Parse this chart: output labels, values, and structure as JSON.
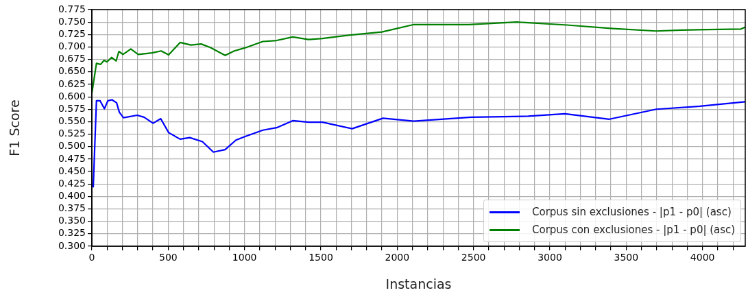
{
  "chart_data": {
    "type": "line",
    "xlabel": "Instancias",
    "ylabel": "F1 Score",
    "xlim": [
      0,
      4280
    ],
    "ylim": [
      0.3,
      0.775
    ],
    "xticks": [
      0,
      {
        "value": 100,
        "label": null
      },
      {
        "value": 200,
        "label": null
      },
      {
        "value": 300,
        "label": null
      },
      {
        "value": 400,
        "label": null
      },
      500,
      {
        "value": 600,
        "label": null
      },
      {
        "value": 700,
        "label": null
      },
      {
        "value": 800,
        "label": null
      },
      {
        "value": 900,
        "label": null
      },
      1000,
      {
        "value": 1100,
        "label": null
      },
      {
        "value": 1200,
        "label": null
      },
      {
        "value": 1300,
        "label": null
      },
      {
        "value": 1400,
        "label": null
      },
      1500,
      {
        "value": 1600,
        "label": null
      },
      {
        "value": 1700,
        "label": null
      },
      {
        "value": 1800,
        "label": null
      },
      {
        "value": 1900,
        "label": null
      },
      2000,
      {
        "value": 2100,
        "label": null
      },
      {
        "value": 2200,
        "label": null
      },
      {
        "value": 2300,
        "label": null
      },
      {
        "value": 2400,
        "label": null
      },
      2500,
      {
        "value": 2600,
        "label": null
      },
      {
        "value": 2700,
        "label": null
      },
      {
        "value": 2800,
        "label": null
      },
      {
        "value": 2900,
        "label": null
      },
      3000,
      {
        "value": 3100,
        "label": null
      },
      {
        "value": 3200,
        "label": null
      },
      {
        "value": 3300,
        "label": null
      },
      {
        "value": 3400,
        "label": null
      },
      3500,
      {
        "value": 3600,
        "label": null
      },
      {
        "value": 3700,
        "label": null
      },
      {
        "value": 3800,
        "label": null
      },
      {
        "value": 3900,
        "label": null
      },
      4000,
      {
        "value": 4100,
        "label": null
      },
      {
        "value": 4200,
        "label": null
      }
    ],
    "yticks": [
      {
        "value": 0.3,
        "label": "0.300"
      },
      {
        "value": 0.325,
        "label": "0.325"
      },
      {
        "value": 0.35,
        "label": "0.350"
      },
      {
        "value": 0.375,
        "label": "0.375"
      },
      {
        "value": 0.4,
        "label": "0.400"
      },
      {
        "value": 0.425,
        "label": "0.425"
      },
      {
        "value": 0.45,
        "label": "0.450"
      },
      {
        "value": 0.475,
        "label": "0.475"
      },
      {
        "value": 0.5,
        "label": "0.500"
      },
      {
        "value": 0.525,
        "label": "0.525"
      },
      {
        "value": 0.55,
        "label": "0.550"
      },
      {
        "value": 0.575,
        "label": "0.575"
      },
      {
        "value": 0.6,
        "label": "0.600"
      },
      {
        "value": 0.625,
        "label": "0.625"
      },
      {
        "value": 0.65,
        "label": "0.650"
      },
      {
        "value": 0.675,
        "label": "0.675"
      },
      {
        "value": 0.7,
        "label": "0.700"
      },
      {
        "value": 0.725,
        "label": "0.725"
      },
      {
        "value": 0.75,
        "label": "0.750"
      },
      {
        "value": 0.775,
        "label": "0.775"
      }
    ],
    "grid": true,
    "legend": "bottom right",
    "marker": "none",
    "line_style": "solid",
    "series": [
      {
        "name": "Corpus sin exclusiones - |p1 - p0| (asc)",
        "color": "#0000ff",
        "x": [
          9,
          30,
          54,
          82,
          105,
          132,
          162,
          180,
          207,
          297,
          342,
          401,
          451,
          503,
          578,
          641,
          724,
          796,
          873,
          944,
          1001,
          1120,
          1210,
          1316,
          1420,
          1510,
          1705,
          1907,
          2109,
          2484,
          2858,
          3098,
          3390,
          3697,
          3982,
          4280
        ],
        "values": [
          0.418,
          0.592,
          0.592,
          0.576,
          0.592,
          0.594,
          0.588,
          0.569,
          0.558,
          0.563,
          0.559,
          0.547,
          0.556,
          0.528,
          0.515,
          0.518,
          0.51,
          0.489,
          0.494,
          0.513,
          0.52,
          0.533,
          0.538,
          0.552,
          0.549,
          0.549,
          0.536,
          0.557,
          0.551,
          0.559,
          0.561,
          0.566,
          0.555,
          0.575,
          0.581,
          0.59
        ]
      },
      {
        "name": "Corpus con exclusiones - |p1 - p0| (asc)",
        "color": "#008000",
        "x": [
          0,
          30,
          57,
          80,
          99,
          129,
          159,
          177,
          204,
          255,
          304,
          394,
          454,
          503,
          578,
          649,
          716,
          776,
          873,
          933,
          1001,
          1120,
          1210,
          1316,
          1420,
          1510,
          1690,
          1900,
          2109,
          2469,
          2783,
          3113,
          3413,
          3697,
          3861,
          4252,
          4280
        ],
        "values": [
          0.607,
          0.667,
          0.665,
          0.673,
          0.67,
          0.679,
          0.672,
          0.691,
          0.685,
          0.696,
          0.685,
          0.688,
          0.692,
          0.684,
          0.709,
          0.704,
          0.706,
          0.699,
          0.683,
          0.692,
          0.698,
          0.711,
          0.713,
          0.72,
          0.715,
          0.717,
          0.724,
          0.73,
          0.745,
          0.745,
          0.75,
          0.744,
          0.737,
          0.732,
          0.734,
          0.736,
          0.74
        ]
      }
    ]
  }
}
